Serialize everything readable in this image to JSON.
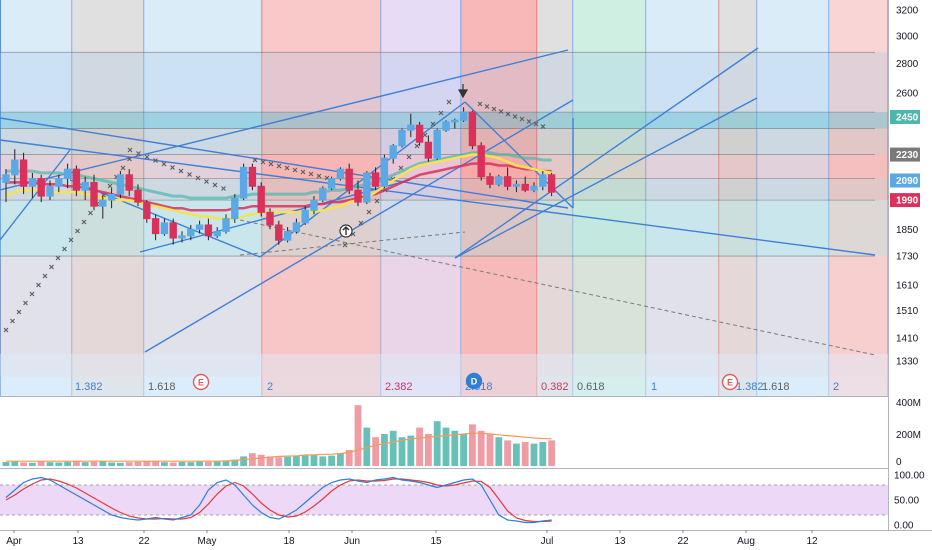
{
  "chart_data": {
    "type": "candlestick",
    "colors": {
      "up": "#5aa9e6",
      "down": "#d9305c",
      "ma_yellow": "#f5e34f",
      "ma_red": "#d9305c",
      "ma_teal": "#4db6ac",
      "trend": "#3f7fd6",
      "psar": "#606060",
      "vol_up": "#4db6ac",
      "vol_down": "#ef8a95",
      "stoch_k": "#2f7ed8",
      "stoch_d": "#e33b3b",
      "stoch_bg": "#e6c8f5"
    },
    "x_axis": {
      "tick_labels": [
        "Apr",
        "13",
        "22",
        "May",
        "18",
        "Jun",
        "15",
        "Jul",
        "13",
        "22",
        "Aug",
        "12"
      ]
    },
    "price_axis": {
      "range": [
        1250,
        3250
      ],
      "scale": "log",
      "tick_labels": [
        "3200",
        "3000",
        "2800",
        "2600",
        "2450",
        "2230",
        "2090",
        "1990",
        "1850",
        "1730",
        "1610",
        "1510",
        "1410",
        "1330"
      ],
      "tick_values": [
        3200,
        3000,
        2800,
        2600,
        2450,
        2230,
        2090,
        1990,
        1850,
        1730,
        1610,
        1510,
        1410,
        1330
      ]
    },
    "price_labels": [
      {
        "text": "2450",
        "value": 2450,
        "color": "#4db6ac"
      },
      {
        "text": "2230",
        "value": 2230,
        "color": "#7a7a7a"
      },
      {
        "text": "2090",
        "value": 2090,
        "color": "#5aa9e6"
      },
      {
        "text": "1990",
        "value": 1990,
        "color": "#d9305c"
      }
    ],
    "fib_time_labels": [
      {
        "text": "1.382",
        "color": "#3f7fd6"
      },
      {
        "text": "1.618",
        "color": "#606060"
      },
      {
        "text": "2",
        "color": "#3f7fd6"
      },
      {
        "text": "2.382",
        "color": "#d9305c"
      },
      {
        "text": "2.618",
        "color": "#3f7fd6"
      },
      {
        "text": "0.382",
        "color": "#d9305c"
      },
      {
        "text": "0.618",
        "color": "#606060"
      },
      {
        "text": "1",
        "color": "#3f7fd6"
      },
      {
        "text": "1.382",
        "color": "#3f7fd6"
      },
      {
        "text": "1.618",
        "color": "#606060"
      },
      {
        "text": "2",
        "color": "#3f7fd6"
      }
    ],
    "markers": [
      {
        "text": "E",
        "kind": "earnings"
      },
      {
        "text": "D",
        "kind": "dividend"
      },
      {
        "text": "E",
        "kind": "earnings"
      }
    ],
    "candles": [
      [
        2080,
        2150,
        1980,
        2120
      ],
      [
        2120,
        2260,
        2070,
        2200
      ],
      [
        2200,
        2240,
        2020,
        2060
      ],
      [
        2060,
        2130,
        2000,
        2100
      ],
      [
        2100,
        2120,
        1980,
        2010
      ],
      [
        2010,
        2090,
        1990,
        2060
      ],
      [
        2060,
        2120,
        2030,
        2100
      ],
      [
        2100,
        2180,
        2050,
        2150
      ],
      [
        2150,
        2170,
        2010,
        2040
      ],
      [
        2040,
        2110,
        1990,
        2080
      ],
      [
        2080,
        2120,
        1940,
        1960
      ],
      [
        1960,
        2010,
        1900,
        1990
      ],
      [
        1990,
        2050,
        1950,
        2020
      ],
      [
        2020,
        2140,
        2000,
        2120
      ],
      [
        2120,
        2150,
        2010,
        2040
      ],
      [
        2040,
        2070,
        1960,
        1980
      ],
      [
        1980,
        1990,
        1880,
        1900
      ],
      [
        1900,
        1920,
        1800,
        1830
      ],
      [
        1830,
        1900,
        1820,
        1880
      ],
      [
        1880,
        1900,
        1780,
        1810
      ],
      [
        1810,
        1840,
        1790,
        1820
      ],
      [
        1820,
        1870,
        1800,
        1850
      ],
      [
        1850,
        1890,
        1830,
        1870
      ],
      [
        1870,
        1900,
        1800,
        1820
      ],
      [
        1820,
        1860,
        1810,
        1840
      ],
      [
        1840,
        1920,
        1830,
        1900
      ],
      [
        1900,
        2020,
        1880,
        2000
      ],
      [
        2000,
        2180,
        1990,
        2160
      ],
      [
        2160,
        2180,
        2040,
        2060
      ],
      [
        2060,
        2080,
        1910,
        1930
      ],
      [
        1930,
        1950,
        1850,
        1870
      ],
      [
        1870,
        1890,
        1780,
        1800
      ],
      [
        1800,
        1860,
        1790,
        1840
      ],
      [
        1840,
        1900,
        1830,
        1880
      ],
      [
        1880,
        1960,
        1870,
        1940
      ],
      [
        1940,
        2010,
        1920,
        1990
      ],
      [
        1990,
        2060,
        1980,
        2050
      ],
      [
        2050,
        2110,
        2040,
        2100
      ],
      [
        2100,
        2160,
        2090,
        2150
      ],
      [
        2150,
        2180,
        2020,
        2040
      ],
      [
        2040,
        2090,
        1960,
        1980
      ],
      [
        1980,
        2140,
        1970,
        2130
      ],
      [
        2130,
        2160,
        2040,
        2060
      ],
      [
        2060,
        2230,
        2050,
        2210
      ],
      [
        2210,
        2290,
        2180,
        2280
      ],
      [
        2280,
        2380,
        2270,
        2370
      ],
      [
        2370,
        2470,
        2330,
        2400
      ],
      [
        2400,
        2420,
        2280,
        2300
      ],
      [
        2300,
        2340,
        2190,
        2210
      ],
      [
        2210,
        2380,
        2200,
        2370
      ],
      [
        2370,
        2430,
        2360,
        2420
      ],
      [
        2420,
        2440,
        2380,
        2430
      ],
      [
        2430,
        2510,
        2420,
        2480
      ],
      [
        2480,
        2490,
        2260,
        2280
      ],
      [
        2280,
        2300,
        2090,
        2110
      ],
      [
        2110,
        2130,
        2050,
        2070
      ],
      [
        2070,
        2120,
        2060,
        2110
      ],
      [
        2110,
        2160,
        2040,
        2060
      ],
      [
        2060,
        2090,
        2030,
        2070
      ],
      [
        2070,
        2110,
        2030,
        2040
      ],
      [
        2040,
        2080,
        2030,
        2060
      ],
      [
        2060,
        2140,
        2040,
        2120
      ],
      [
        2120,
        2130,
        2010,
        2030
      ]
    ],
    "ma_yellow": [
      2010,
      2030,
      2040,
      2040,
      2040,
      2030,
      2030,
      2030,
      2030,
      2020,
      2010,
      2000,
      1990,
      1990,
      1990,
      1980,
      1970,
      1960,
      1950,
      1940,
      1930,
      1920,
      1910,
      1910,
      1900,
      1900,
      1900,
      1910,
      1920,
      1930,
      1930,
      1930,
      1930,
      1930,
      1930,
      1930,
      1940,
      1950,
      1960,
      1980,
      1990,
      2000,
      2030,
      2060,
      2090,
      2120,
      2150,
      2170,
      2180,
      2190,
      2200,
      2210,
      2220,
      2230,
      2230,
      2220,
      2210,
      2190,
      2170,
      2160,
      2150,
      2140,
      2130
    ],
    "ma_red": [
      2080,
      2080,
      2080,
      2080,
      2070,
      2070,
      2070,
      2060,
      2060,
      2050,
      2040,
      2030,
      2020,
      2010,
      2000,
      1990,
      1980,
      1970,
      1960,
      1950,
      1950,
      1940,
      1940,
      1940,
      1940,
      1940,
      1950,
      1950,
      1960,
      1960,
      1960,
      1960,
      1960,
      1960,
      1960,
      1970,
      1970,
      1980,
      1980,
      1990,
      2000,
      2010,
      2020,
      2040,
      2060,
      2080,
      2100,
      2120,
      2130,
      2140,
      2150,
      2160,
      2170,
      2180,
      2180,
      2180,
      2170,
      2170,
      2160,
      2150,
      2150,
      2140,
      2140
    ],
    "volume_axis": {
      "tick_labels": [
        "400M",
        "200M",
        "0"
      ],
      "range": [
        0,
        400
      ]
    },
    "volume": [
      25,
      30,
      22,
      20,
      28,
      24,
      22,
      26,
      30,
      24,
      26,
      28,
      22,
      20,
      24,
      26,
      30,
      28,
      24,
      22,
      26,
      24,
      28,
      26,
      30,
      32,
      40,
      60,
      80,
      70,
      60,
      55,
      58,
      62,
      70,
      72,
      60,
      65,
      80,
      100,
      380,
      240,
      180,
      200,
      220,
      180,
      190,
      240,
      200,
      280,
      240,
      220,
      200,
      260,
      220,
      200,
      180,
      160,
      140,
      150,
      140,
      150,
      160
    ],
    "volume_ma": [
      30,
      30,
      30,
      30,
      30,
      30,
      30,
      30,
      30,
      30,
      30,
      30,
      30,
      30,
      30,
      30,
      30,
      30,
      30,
      30,
      30,
      30,
      30,
      30,
      30,
      32,
      35,
      40,
      45,
      50,
      55,
      60,
      62,
      64,
      68,
      70,
      72,
      74,
      78,
      85,
      100,
      115,
      130,
      140,
      150,
      160,
      170,
      175,
      180,
      185,
      190,
      195,
      200,
      205,
      205,
      200,
      195,
      190,
      185,
      180,
      175,
      172,
      170
    ],
    "stoch_axis": {
      "tick_labels": [
        "100.00",
        "50.00",
        "0.00"
      ],
      "range": [
        -10,
        110
      ]
    },
    "stoch_k": [
      55,
      70,
      85,
      92,
      95,
      90,
      80,
      70,
      60,
      50,
      40,
      30,
      20,
      15,
      12,
      10,
      12,
      15,
      12,
      10,
      15,
      20,
      40,
      70,
      85,
      90,
      80,
      60,
      40,
      25,
      15,
      12,
      20,
      30,
      45,
      60,
      75,
      85,
      90,
      92,
      88,
      85,
      90,
      92,
      95,
      90,
      88,
      85,
      80,
      75,
      80,
      85,
      90,
      92,
      80,
      50,
      20,
      10,
      8,
      5,
      5,
      8,
      10
    ],
    "stoch_d": [
      50,
      60,
      72,
      82,
      90,
      92,
      88,
      82,
      74,
      64,
      54,
      44,
      34,
      25,
      18,
      14,
      12,
      12,
      13,
      12,
      12,
      15,
      25,
      42,
      62,
      78,
      85,
      78,
      62,
      44,
      30,
      20,
      16,
      18,
      26,
      38,
      52,
      68,
      80,
      88,
      90,
      88,
      88,
      89,
      92,
      92,
      90,
      88,
      85,
      80,
      78,
      80,
      84,
      88,
      87,
      75,
      52,
      28,
      14,
      9,
      7,
      7,
      8
    ]
  }
}
